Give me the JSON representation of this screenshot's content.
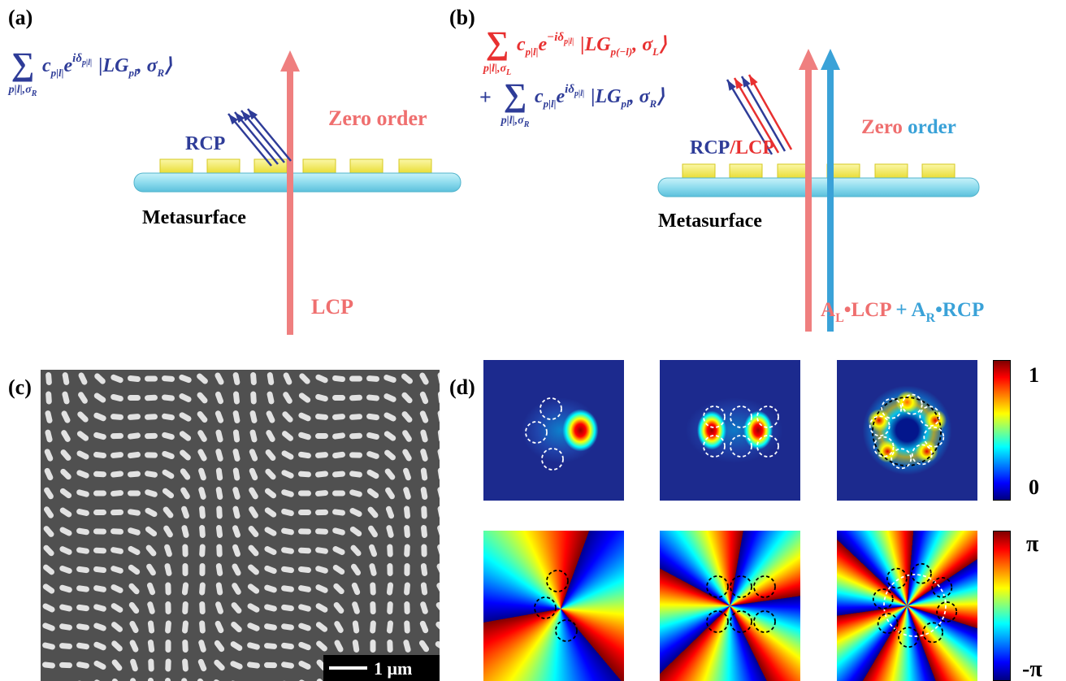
{
  "panel_a": {
    "label": "(a)",
    "formula": {
      "sum": "∑",
      "index": "p|l|,σ",
      "index_sub": "R",
      "coef": "c",
      "coef_sub": "p|l|",
      "exp_base": "e",
      "exp": "iδ",
      "exp_sub": "p|l|",
      "ket": "|LG",
      "ket_sub": "pl",
      "ket_comma": ", σ",
      "ket_comma_sub": "R",
      "ket_close": "⟩"
    },
    "rcp": "RCP",
    "zero_order": "Zero order",
    "metasurface": "Metasurface",
    "lcp": "LCP"
  },
  "panel_b": {
    "label": "(b)",
    "formula_l": {
      "sum": "∑",
      "index": "p|l|,σ",
      "index_sub": "L",
      "coef": "c",
      "coef_sub": "p|l|",
      "exp_base": "e",
      "exp": "−iδ",
      "exp_sub": "p|l|",
      "ket": "|LG",
      "ket_sub": "p(−l)",
      "ket_comma": ", σ",
      "ket_comma_sub": "L",
      "ket_close": "⟩"
    },
    "formula_r": {
      "plus": "+",
      "sum": "∑",
      "index": "p|l|,σ",
      "index_sub": "R",
      "coef": "c",
      "coef_sub": "p|l|",
      "exp_base": "e",
      "exp": "iδ",
      "exp_sub": "p|l|",
      "ket": "|LG",
      "ket_sub": "pl",
      "ket_comma": ", σ",
      "ket_comma_sub": "R",
      "ket_close": "⟩"
    },
    "rcp": "RCP",
    "slash_lcp": "/LCP",
    "zero": "Zero",
    "order": "order",
    "metasurface": "Metasurface",
    "input": {
      "a_l": "A",
      "a_l_sub": "L",
      "lcp": "•LCP",
      "plus_a": " + A",
      "a_r_sub": "R",
      "rcp": "•RCP"
    }
  },
  "panel_c": {
    "label": "(c)",
    "scale_bar": "1 μm"
  },
  "panel_d": {
    "label": "(d)",
    "intensity_max": "1",
    "intensity_min": "0",
    "phase_max": "π",
    "phase_min": "-π"
  }
}
